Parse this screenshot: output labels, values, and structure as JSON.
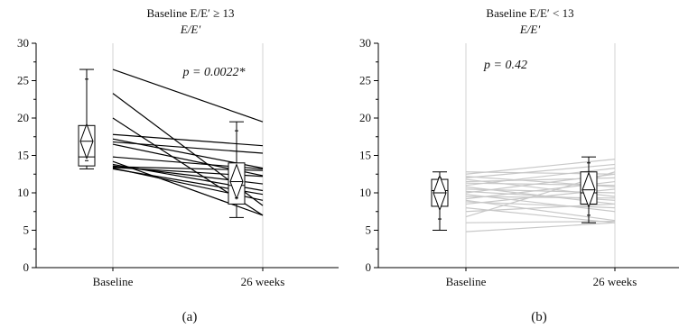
{
  "chart_data": [
    {
      "type": "line",
      "panel_label": "(a)",
      "title": "Baseline E/E′ ≥ 13",
      "subtitle": "E/E′",
      "annotation": "p = 0.0022*",
      "categories": [
        "Baseline",
        "26 weeks"
      ],
      "ylim": [
        0,
        30
      ],
      "yticks": [
        "0",
        "5",
        "10",
        "15",
        "20",
        "25",
        "30"
      ],
      "line_color": "#000000",
      "pairs": [
        [
          26.5,
          19.5
        ],
        [
          23.3,
          8.3
        ],
        [
          20.0,
          7.0
        ],
        [
          17.8,
          16.3
        ],
        [
          17.2,
          13.3
        ],
        [
          16.8,
          15.3
        ],
        [
          16.5,
          12.3
        ],
        [
          14.8,
          13.2
        ],
        [
          14.2,
          7.0
        ],
        [
          13.8,
          10.3
        ],
        [
          13.6,
          11.2
        ],
        [
          13.5,
          13.0
        ],
        [
          13.4,
          12.2
        ],
        [
          13.3,
          9.0
        ],
        [
          13.2,
          9.8
        ]
      ],
      "boxplots": [
        {
          "whisker_low": 13.2,
          "q1": 13.6,
          "median": 14.8,
          "q3": 19.0,
          "whisker_high": 26.5,
          "mean": 16.9,
          "sd": [
            14.3,
            25.2
          ]
        },
        {
          "whisker_low": 6.7,
          "q1": 8.5,
          "median": 11.0,
          "q3": 14.0,
          "whisker_high": 19.5,
          "mean": 11.5,
          "sd": [
            9.3,
            18.3
          ]
        }
      ]
    },
    {
      "type": "line",
      "panel_label": "(b)",
      "title": "Baseline E/E′ < 13",
      "subtitle": "E/E′",
      "annotation": "p = 0.42",
      "categories": [
        "Baseline",
        "26 weeks"
      ],
      "ylim": [
        0,
        30
      ],
      "yticks": [
        "0",
        "5",
        "10",
        "15",
        "20",
        "25",
        "30"
      ],
      "line_color": "#c8c8c8",
      "pairs": [
        [
          12.8,
          12.5
        ],
        [
          12.5,
          14.5
        ],
        [
          12.2,
          10.8
        ],
        [
          12.0,
          13.8
        ],
        [
          11.8,
          9.5
        ],
        [
          11.5,
          12.0
        ],
        [
          11.3,
          11.0
        ],
        [
          11.0,
          13.3
        ],
        [
          10.8,
          8.5
        ],
        [
          10.5,
          10.0
        ],
        [
          10.2,
          9.0
        ],
        [
          10.0,
          12.5
        ],
        [
          9.8,
          7.5
        ],
        [
          9.5,
          9.3
        ],
        [
          9.2,
          11.5
        ],
        [
          9.0,
          6.3
        ],
        [
          8.8,
          8.0
        ],
        [
          8.5,
          10.5
        ],
        [
          8.0,
          6.0
        ],
        [
          7.5,
          8.5
        ],
        [
          6.8,
          12.8
        ],
        [
          6.0,
          6.2
        ],
        [
          4.8,
          6.0
        ]
      ],
      "boxplots": [
        {
          "whisker_low": 5.0,
          "q1": 8.2,
          "median": 10.3,
          "q3": 11.8,
          "whisker_high": 12.8,
          "mean": 10.0,
          "sd": [
            6.5,
            12.0
          ]
        },
        {
          "whisker_low": 6.0,
          "q1": 8.5,
          "median": 10.0,
          "q3": 12.8,
          "whisker_high": 14.8,
          "mean": 10.4,
          "sd": [
            7.0,
            14.0
          ]
        }
      ]
    }
  ]
}
